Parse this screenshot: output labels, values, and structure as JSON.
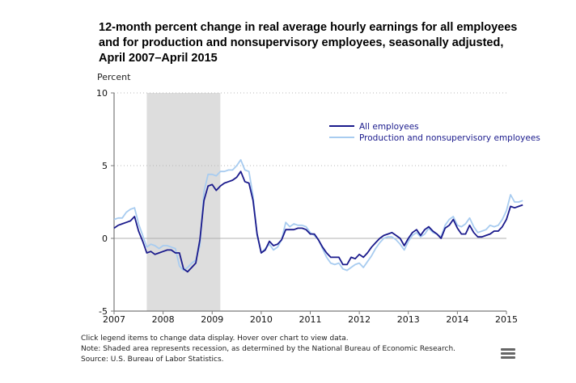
{
  "chart_data": {
    "type": "line",
    "title_lines": [
      "12-month percent change in real average hourly earnings for all employees",
      "and for production and nonsupervisory employees, seasonally adjusted,",
      "April 2007–April 2015"
    ],
    "ylabel": "Percent",
    "xlabel": "",
    "ylim": [
      -5,
      10
    ],
    "yticks": [
      -5,
      0,
      5,
      10
    ],
    "x_start": "2007-04",
    "x_end": "2015-04",
    "x_tick_labels": [
      "2007",
      "2008",
      "2009",
      "2010",
      "2011",
      "2012",
      "2013",
      "2014",
      "2015"
    ],
    "grid": "dotted horizontal at 5 and 10",
    "recession": {
      "start": "2007-12",
      "end": "2009-06",
      "color": "#dddddd"
    },
    "legend_placement": "top-right",
    "series": [
      {
        "name": "All employees",
        "color": "#1a1a8c",
        "values": [
          0.7,
          0.9,
          1.0,
          1.1,
          1.2,
          1.5,
          0.5,
          -0.2,
          -1.0,
          -0.9,
          -1.1,
          -1.0,
          -0.9,
          -0.8,
          -0.8,
          -1.0,
          -1.0,
          -2.1,
          -2.3,
          -2.0,
          -1.7,
          -0.1,
          2.6,
          3.6,
          3.7,
          3.3,
          3.6,
          3.8,
          3.9,
          4.0,
          4.2,
          4.6,
          3.9,
          3.8,
          2.6,
          0.3,
          -1.0,
          -0.8,
          -0.2,
          -0.5,
          -0.4,
          -0.1,
          0.6,
          0.6,
          0.6,
          0.7,
          0.7,
          0.6,
          0.3,
          0.3,
          -0.1,
          -0.6,
          -1.0,
          -1.3,
          -1.3,
          -1.3,
          -1.8,
          -1.8,
          -1.3,
          -1.4,
          -1.1,
          -1.3,
          -1.0,
          -0.6,
          -0.3,
          0.0,
          0.2,
          0.3,
          0.4,
          0.2,
          0.0,
          -0.5,
          0.0,
          0.4,
          0.6,
          0.2,
          0.6,
          0.8,
          0.5,
          0.3,
          0.0,
          0.7,
          0.9,
          1.3,
          0.7,
          0.3,
          0.3,
          0.9,
          0.4,
          0.1,
          0.1,
          0.2,
          0.3,
          0.5,
          0.5,
          0.8,
          1.3,
          2.2,
          2.1,
          2.2,
          2.3
        ],
        "values_note": "monthly, April 2007 – April 2015, estimated from plot"
      },
      {
        "name": "Production and nonsupervisory employees",
        "color": "#a8ccf0",
        "values": [
          1.3,
          1.4,
          1.4,
          1.8,
          2.0,
          2.1,
          1.0,
          0.2,
          -0.6,
          -0.4,
          -0.5,
          -0.7,
          -0.5,
          -0.5,
          -0.6,
          -0.7,
          -1.9,
          -2.2,
          -2.0,
          -1.7,
          -1.5,
          -0.5,
          3.2,
          4.4,
          4.4,
          4.3,
          4.6,
          4.6,
          4.7,
          4.7,
          5.0,
          5.4,
          4.7,
          4.6,
          2.9,
          0.2,
          -1.0,
          -0.7,
          -0.4,
          -0.8,
          -0.6,
          -0.1,
          1.1,
          0.8,
          1.0,
          0.9,
          0.9,
          0.8,
          0.4,
          0.2,
          -0.1,
          -0.7,
          -1.3,
          -1.7,
          -1.8,
          -1.7,
          -2.1,
          -2.2,
          -2.0,
          -1.8,
          -1.7,
          -2.0,
          -1.6,
          -1.2,
          -0.7,
          -0.3,
          0.0,
          0.1,
          0.1,
          -0.1,
          -0.4,
          -0.8,
          -0.2,
          0.2,
          0.4,
          0.1,
          0.3,
          0.7,
          0.4,
          0.3,
          0.1,
          0.9,
          1.3,
          1.5,
          0.9,
          0.8,
          1.0,
          1.4,
          0.8,
          0.4,
          0.5,
          0.6,
          0.9,
          0.8,
          0.9,
          1.3,
          1.9,
          3.0,
          2.5,
          2.5,
          2.6
        ]
      }
    ]
  },
  "notes": [
    "Click legend items to change data display. Hover over chart to view data.",
    "Note: Shaded area represents recession, as determined by the National Bureau of Economic Research.",
    "Source: U.S. Bureau of Labor Statistics."
  ],
  "menu_icon": "hamburger-menu-icon"
}
